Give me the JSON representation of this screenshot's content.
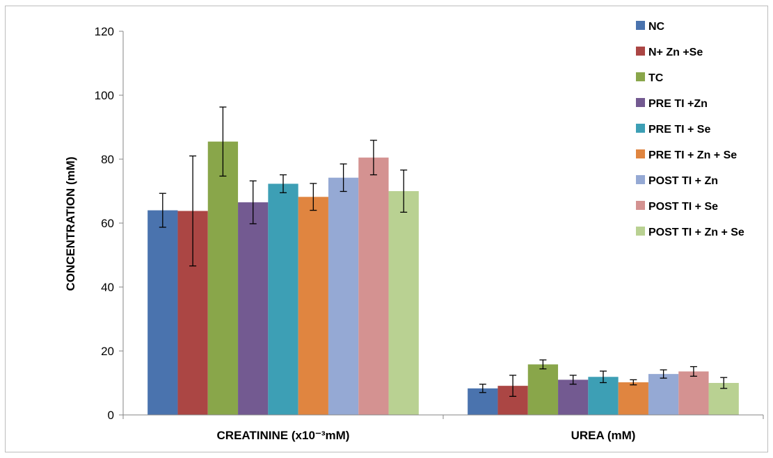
{
  "chart_data": {
    "type": "bar",
    "ylabel": "CONCENTRATION (mM)",
    "xlabel": "",
    "ylim": [
      0,
      120
    ],
    "yticks": [
      0,
      20,
      40,
      60,
      80,
      100,
      120
    ],
    "grid": false,
    "legend_position": "right",
    "categories": [
      "CREATININE (x10⁻³mM)",
      "UREA (mM)"
    ],
    "series": [
      {
        "name": "NC",
        "color": "#4a73ae",
        "values": [
          64,
          8.3
        ],
        "errors": [
          5.3,
          1.3
        ]
      },
      {
        "name": "N+ Zn +Se",
        "color": "#ab4644",
        "values": [
          63.8,
          9.1
        ],
        "errors": [
          17.2,
          3.3
        ]
      },
      {
        "name": "TC",
        "color": "#89a64a",
        "values": [
          85.5,
          15.8
        ],
        "errors": [
          10.8,
          1.4
        ]
      },
      {
        "name": "PRE TI +Zn",
        "color": "#735a91",
        "values": [
          66.5,
          11
        ],
        "errors": [
          6.7,
          1.4
        ]
      },
      {
        "name": "PRE TI + Se",
        "color": "#3d9fb5",
        "values": [
          72.3,
          11.9
        ],
        "errors": [
          2.8,
          1.8
        ]
      },
      {
        "name": "PRE TI + Zn + Se",
        "color": "#e08540",
        "values": [
          68.2,
          10.2
        ],
        "errors": [
          4.2,
          0.8
        ]
      },
      {
        "name": "POST TI + Zn",
        "color": "#95a9d4",
        "values": [
          74.2,
          12.8
        ],
        "errors": [
          4.3,
          1.3
        ]
      },
      {
        "name": "POST TI + Se",
        "color": "#d49291",
        "values": [
          80.5,
          13.6
        ],
        "errors": [
          5.4,
          1.5
        ]
      },
      {
        "name": "POST TI + Zn + Se",
        "color": "#b9d192",
        "values": [
          70,
          10
        ],
        "errors": [
          6.6,
          1.7
        ]
      }
    ]
  }
}
